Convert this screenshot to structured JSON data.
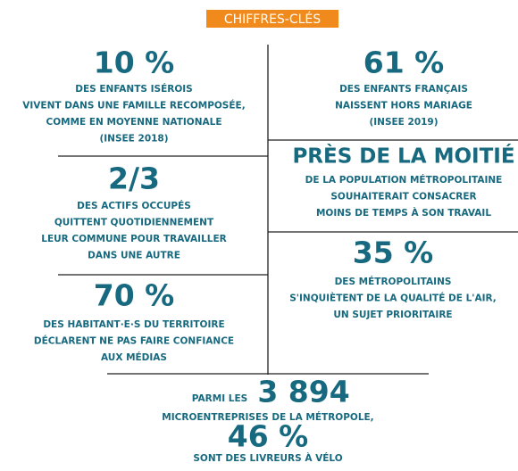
{
  "header": {
    "title": "CHIFFRES-CLÉS"
  },
  "blocks": [
    {
      "figure": "10 %",
      "lines": [
        "DES ENFANTS ISÉROIS",
        "VIVENT DANS UNE FAMILLE RECOMPOSÉE,",
        "COMME EN MOYENNE NATIONALE",
        "(INSEE 2018)"
      ]
    },
    {
      "figure": "61 %",
      "lines": [
        "DES ENFANTS FRANÇAIS",
        "NAISSENT HORS MARIAGE",
        "(INSEE 2019)"
      ]
    },
    {
      "figure": "PRÈS DE LA MOITIÉ",
      "lines": [
        "DE LA POPULATION MÉTROPOLITAINE",
        "SOUHAITERAIT CONSACRER",
        "MOINS DE TEMPS À SON TRAVAIL"
      ]
    },
    {
      "figure": "2/3",
      "lines": [
        "DES ACTIFS OCCUPÉS",
        "QUITTENT QUOTIDIENNEMENT",
        "LEUR COMMUNE POUR TRAVAILLER",
        "DANS UNE AUTRE"
      ]
    },
    {
      "figure": "35 %",
      "lines": [
        "DES MÉTROPOLITAINS",
        "S'INQUIÈTENT DE LA QUALITÉ DE L'AIR,",
        "UN SUJET PRIORITAIRE"
      ]
    },
    {
      "figure": "70 %",
      "lines": [
        "DES HABITANT·E·S DU TERRITOIRE",
        "DÉCLARENT NE PAS FAIRE CONFIANCE",
        "AUX MÉDIAS"
      ]
    }
  ],
  "footer": {
    "intro": "PARMI LES",
    "figure": "3 894",
    "line1": "MICROENTREPRISES DE LA MÉTROPOLE,",
    "figure2": "46 %",
    "line2": "SONT DES LIVREURS À VÉLO"
  }
}
